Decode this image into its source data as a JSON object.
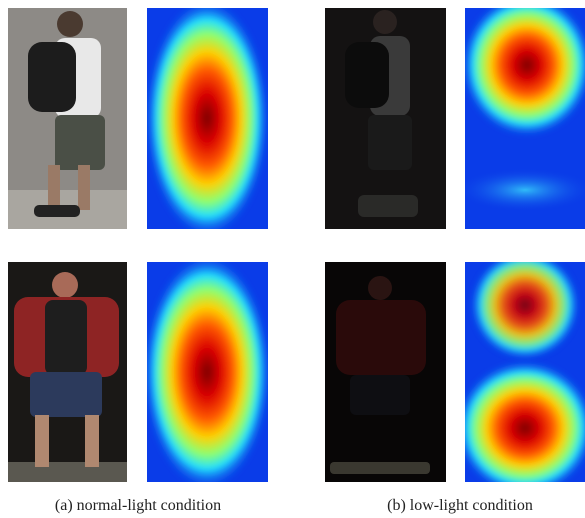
{
  "captions": [
    "(a) normal-light condition",
    "(b) low-light condition"
  ]
}
